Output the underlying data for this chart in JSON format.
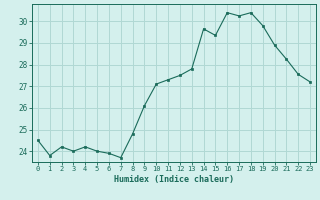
{
  "x": [
    0,
    1,
    2,
    3,
    4,
    5,
    6,
    7,
    8,
    9,
    10,
    11,
    12,
    13,
    14,
    15,
    16,
    17,
    18,
    19,
    20,
    21,
    22,
    23
  ],
  "y": [
    24.5,
    23.8,
    24.2,
    24.0,
    24.2,
    24.0,
    23.9,
    23.7,
    24.8,
    26.1,
    27.1,
    27.3,
    27.5,
    27.8,
    29.65,
    29.35,
    30.4,
    30.25,
    30.4,
    29.8,
    28.9,
    28.25,
    27.55,
    27.2
  ],
  "line_color": "#1a6b5a",
  "marker_color": "#1a6b5a",
  "bg_color": "#d4f0ed",
  "grid_color": "#b0d8d4",
  "tick_label_color": "#1a6b5a",
  "xlabel": "Humidex (Indice chaleur)",
  "xlabel_color": "#1a6b5a",
  "ylim": [
    23.5,
    30.8
  ],
  "yticks": [
    24,
    25,
    26,
    27,
    28,
    29,
    30
  ],
  "title": ""
}
